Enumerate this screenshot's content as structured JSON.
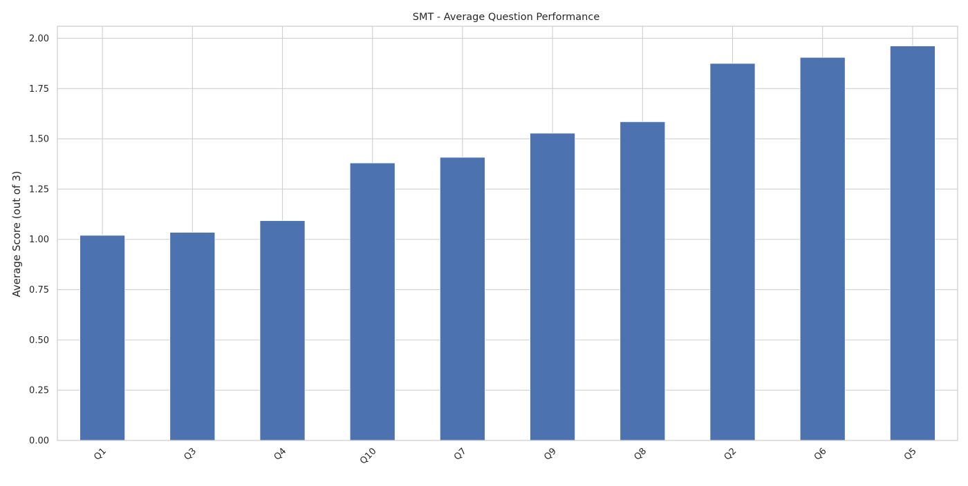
{
  "chart_data": {
    "type": "bar",
    "title": "SMT - Average Question Performance",
    "xlabel": "",
    "ylabel": "Average Score (out of 3)",
    "categories": [
      "Q1",
      "Q3",
      "Q4",
      "Q10",
      "Q7",
      "Q9",
      "Q8",
      "Q2",
      "Q6",
      "Q5"
    ],
    "values": [
      1.02,
      1.035,
      1.093,
      1.38,
      1.408,
      1.528,
      1.585,
      1.875,
      1.905,
      1.962
    ],
    "ylim": [
      0,
      2.06
    ],
    "yticks": [
      0.0,
      0.25,
      0.5,
      0.75,
      1.0,
      1.25,
      1.5,
      1.75,
      2.0
    ],
    "ytick_labels": [
      "0.00",
      "0.25",
      "0.50",
      "0.75",
      "1.00",
      "1.25",
      "1.50",
      "1.75",
      "2.00"
    ],
    "grid": true,
    "legend": "none",
    "colors": {
      "bar": "#4c72b0",
      "grid": "#cfcfcf",
      "text": "#262626",
      "background": "#ffffff"
    }
  }
}
